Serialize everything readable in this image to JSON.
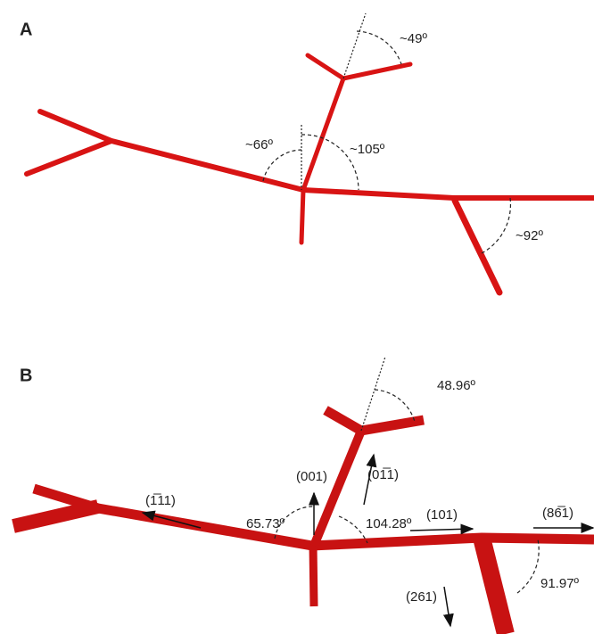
{
  "panels": [
    {
      "label": "A",
      "angles": [
        "~66º",
        "~105º",
        "~49º",
        "~92º"
      ]
    },
    {
      "label": "B",
      "angles": [
        "48.96º",
        "65.73º",
        "104.28º",
        "91.97º"
      ],
      "directions": [
        "(001)",
        "(01̅1)",
        "(1̅11)",
        "(101)",
        "(86̅1)",
        "(261)"
      ]
    }
  ]
}
